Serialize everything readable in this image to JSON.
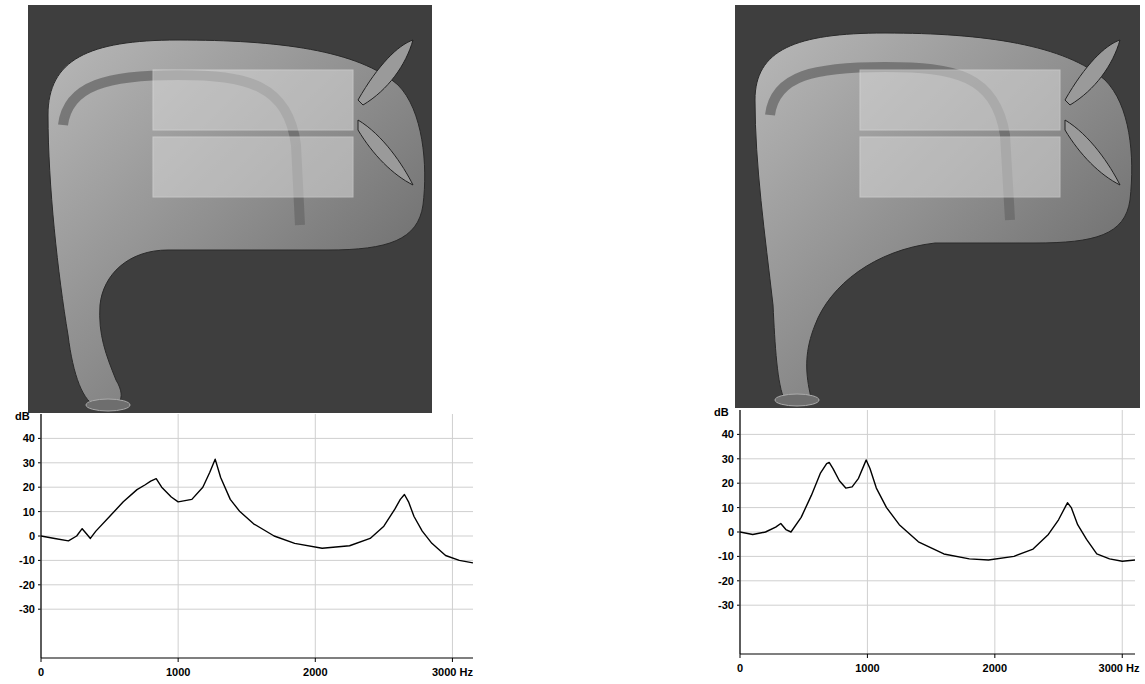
{
  "chart_data": [
    {
      "type": "line",
      "ylabel": "dB",
      "x": [
        0,
        100,
        200,
        260,
        300,
        330,
        360,
        400,
        500,
        600,
        700,
        760,
        800,
        840,
        880,
        950,
        1000,
        1100,
        1180,
        1230,
        1270,
        1310,
        1380,
        1450,
        1550,
        1700,
        1850,
        2050,
        2250,
        2400,
        2500,
        2580,
        2620,
        2650,
        2680,
        2720,
        2780,
        2850,
        2950,
        3050,
        3150
      ],
      "series": [
        {
          "color": "#000000",
          "values": [
            0,
            -1,
            -2,
            0,
            3,
            1,
            -1,
            2,
            8,
            14,
            19,
            21,
            22.5,
            23.5,
            20,
            16,
            14,
            15,
            20,
            26,
            31.5,
            24,
            15,
            10,
            5,
            0,
            -3,
            -5,
            -4,
            -1,
            4,
            11,
            15,
            17,
            14,
            8,
            2,
            -3,
            -8,
            -10,
            -11
          ]
        }
      ],
      "xlim": [
        0,
        3150
      ],
      "xticks": [
        0,
        1000,
        2000,
        {
          "value": 3000,
          "label": "3000 Hz"
        }
      ],
      "ylim": [
        -50,
        50
      ],
      "yticks": [
        -30,
        -20,
        -10,
        0,
        10,
        20,
        30,
        40
      ],
      "grid": true
    },
    {
      "type": "line",
      "ylabel": "dB",
      "x": [
        0,
        100,
        200,
        280,
        320,
        360,
        400,
        480,
        560,
        630,
        680,
        700,
        730,
        780,
        830,
        880,
        930,
        970,
        990,
        1020,
        1070,
        1150,
        1250,
        1400,
        1600,
        1800,
        1950,
        2150,
        2300,
        2420,
        2500,
        2550,
        2570,
        2600,
        2650,
        2720,
        2800,
        2900,
        3000,
        3100
      ],
      "series": [
        {
          "color": "#000000",
          "values": [
            0,
            -1,
            0,
            2,
            3.5,
            1,
            0,
            6,
            15,
            24,
            28,
            28.5,
            26,
            21,
            18,
            18.5,
            22,
            27,
            29.5,
            26,
            18,
            10,
            3,
            -4,
            -9,
            -11,
            -11.5,
            -10,
            -7,
            -1,
            5,
            10,
            12,
            10,
            3,
            -3,
            -9,
            -11,
            -12,
            -11.5
          ]
        }
      ],
      "xlim": [
        0,
        3100
      ],
      "xticks": [
        0,
        1000,
        2000,
        {
          "value": 3000,
          "label": "3000 Hz"
        }
      ],
      "ylim": [
        -50,
        50
      ],
      "yticks": [
        -30,
        -20,
        -10,
        0,
        10,
        20,
        30,
        40
      ],
      "grid": true
    }
  ]
}
